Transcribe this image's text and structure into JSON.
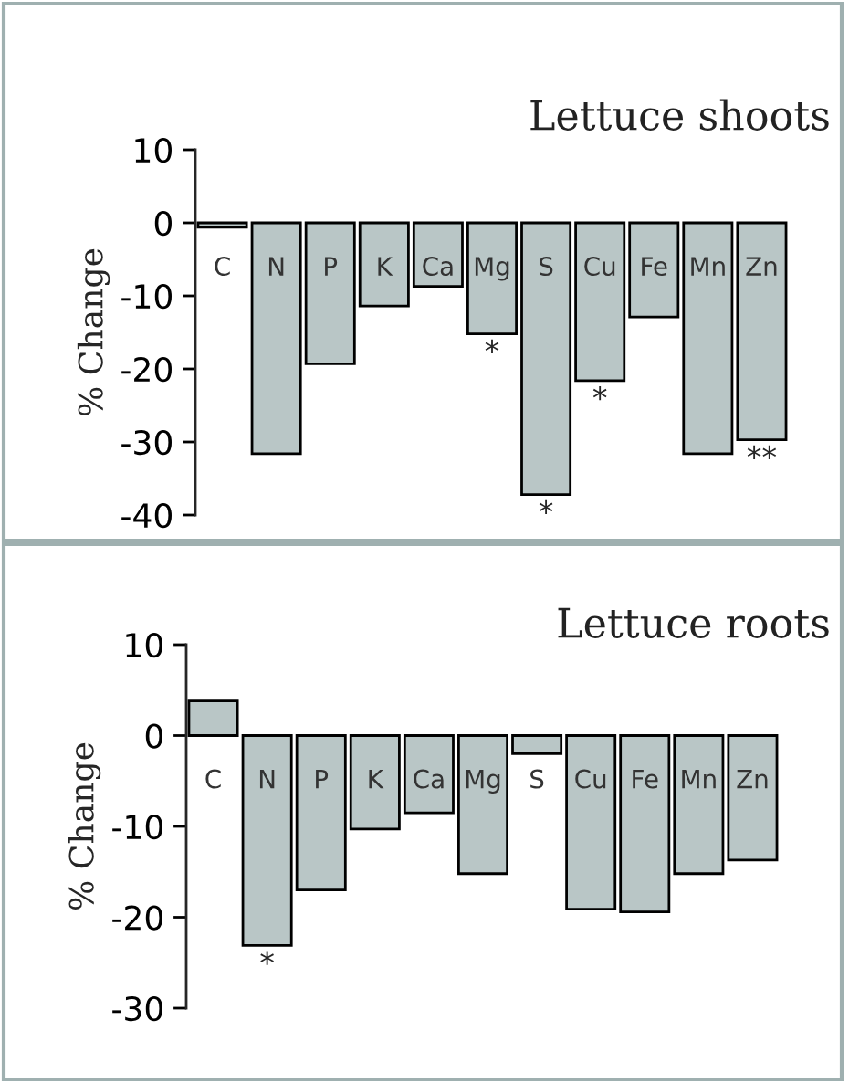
{
  "chart_data": [
    {
      "type": "bar",
      "title": "Lettuce shoots",
      "ylabel": "% Change",
      "categories": [
        "C",
        "N",
        "P",
        "K",
        "Ca",
        "Mg",
        "S",
        "Cu",
        "Fe",
        "Mn",
        "Zn"
      ],
      "values": [
        -0.6,
        -31.6,
        -19.3,
        -11.4,
        -8.7,
        -15.2,
        -37.2,
        -21.6,
        -12.9,
        -31.6,
        -29.7
      ],
      "color": "#b9c6c6",
      "ylim": [
        -40,
        10
      ],
      "yticks": [
        -40,
        -30,
        -20,
        -10,
        0,
        10
      ],
      "grid": false,
      "annotations": [
        {
          "text": "*",
          "x": "Mg",
          "y": -15.2
        },
        {
          "text": "*",
          "x": "S",
          "y": -37.2
        },
        {
          "text": "*",
          "x": "Cu",
          "y": -21.6
        },
        {
          "text": "**",
          "x": "Zn",
          "y": -29.7
        }
      ]
    },
    {
      "type": "bar",
      "title": "Lettuce roots",
      "ylabel": "% Change",
      "categories": [
        "C",
        "N",
        "P",
        "K",
        "Ca",
        "Mg",
        "S",
        "Cu",
        "Fe",
        "Mn",
        "Zn"
      ],
      "values": [
        3.8,
        -23.1,
        -17.0,
        -10.3,
        -8.5,
        -15.2,
        -2.0,
        -19.1,
        -19.4,
        -15.2,
        -13.7
      ],
      "color": "#b9c6c6",
      "ylim": [
        -30,
        10
      ],
      "yticks": [
        -30,
        -20,
        -10,
        0,
        10
      ],
      "grid": false,
      "annotations": [
        {
          "text": "*",
          "x": "N",
          "y": -23.1
        }
      ]
    }
  ]
}
